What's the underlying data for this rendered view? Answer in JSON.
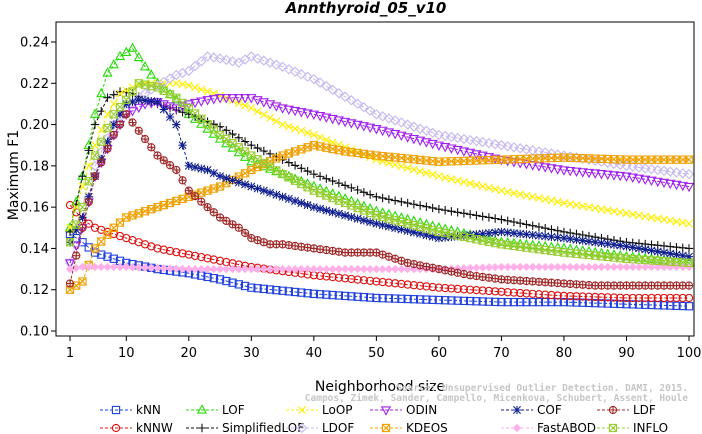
{
  "chart_data": {
    "type": "line",
    "title": "Annthyroid_05_v10",
    "xlabel": "Neighborhood size",
    "ylabel": "Maximum F1",
    "xlim": [
      1,
      100
    ],
    "ylim": [
      0.1,
      0.245
    ],
    "xticks": [
      1,
      10,
      20,
      30,
      40,
      50,
      60,
      70,
      80,
      90,
      100
    ],
    "yticks": [
      0.1,
      0.12,
      0.14,
      0.16,
      0.18,
      0.2,
      0.22,
      0.24
    ],
    "ytick_labels": [
      "0.10",
      "0.12",
      "0.14",
      "0.16",
      "0.18",
      "0.20",
      "0.22",
      "0.24"
    ],
    "grid": false,
    "legend_position": "bottom",
    "watermark": [
      "Source: Unsupervised Outlier Detection. DAMI, 2015.",
      "Campos, Zimek, Sander, Campello, Micenkova, Schubert, Assent, Houle"
    ],
    "series": [
      {
        "name": "kNN",
        "color": "#1f3fe0",
        "marker": "square-open",
        "x": [
          1,
          3,
          5,
          8,
          10,
          15,
          20,
          25,
          30,
          40,
          50,
          60,
          70,
          80,
          90,
          100
        ],
        "y": [
          0.147,
          0.143,
          0.138,
          0.135,
          0.133,
          0.13,
          0.128,
          0.125,
          0.121,
          0.118,
          0.116,
          0.115,
          0.114,
          0.114,
          0.113,
          0.112
        ]
      },
      {
        "name": "kNNW",
        "color": "#e01010",
        "marker": "circle-open",
        "x": [
          1,
          3,
          5,
          8,
          10,
          15,
          20,
          25,
          30,
          40,
          50,
          60,
          70,
          80,
          90,
          100
        ],
        "y": [
          0.161,
          0.154,
          0.15,
          0.147,
          0.145,
          0.14,
          0.137,
          0.134,
          0.131,
          0.127,
          0.124,
          0.121,
          0.119,
          0.117,
          0.116,
          0.116
        ]
      },
      {
        "name": "LOF",
        "color": "#22dd00",
        "marker": "triangle-open",
        "x": [
          1,
          3,
          5,
          7,
          9,
          11,
          13,
          15,
          18,
          20,
          25,
          30,
          35,
          40,
          50,
          60,
          70,
          80,
          90,
          100
        ],
        "y": [
          0.15,
          0.175,
          0.205,
          0.225,
          0.233,
          0.237,
          0.228,
          0.22,
          0.212,
          0.205,
          0.193,
          0.182,
          0.176,
          0.17,
          0.158,
          0.15,
          0.143,
          0.14,
          0.136,
          0.133
        ]
      },
      {
        "name": "SimplifiedLOF",
        "color": "#111111",
        "marker": "plus",
        "x": [
          1,
          3,
          5,
          7,
          9,
          11,
          13,
          15,
          18,
          20,
          25,
          30,
          35,
          40,
          50,
          60,
          70,
          80,
          90,
          100
        ],
        "y": [
          0.148,
          0.175,
          0.2,
          0.213,
          0.216,
          0.215,
          0.212,
          0.21,
          0.207,
          0.205,
          0.199,
          0.19,
          0.183,
          0.176,
          0.165,
          0.159,
          0.154,
          0.148,
          0.143,
          0.14
        ]
      },
      {
        "name": "LoOP",
        "color": "#ffee00",
        "marker": "cross",
        "x": [
          1,
          3,
          5,
          7,
          9,
          11,
          13,
          15,
          18,
          20,
          25,
          30,
          35,
          40,
          50,
          60,
          70,
          80,
          90,
          100
        ],
        "y": [
          0.15,
          0.17,
          0.19,
          0.205,
          0.215,
          0.218,
          0.22,
          0.22,
          0.22,
          0.219,
          0.214,
          0.208,
          0.2,
          0.195,
          0.183,
          0.175,
          0.168,
          0.162,
          0.157,
          0.152
        ]
      },
      {
        "name": "LDOF",
        "color": "#c7b7f2",
        "marker": "diamond-open",
        "x": [
          1,
          3,
          5,
          8,
          10,
          13,
          15,
          18,
          20,
          23,
          25,
          28,
          30,
          35,
          40,
          50,
          60,
          70,
          80,
          90,
          100
        ],
        "y": [
          0.133,
          0.15,
          0.18,
          0.2,
          0.208,
          0.215,
          0.219,
          0.224,
          0.226,
          0.233,
          0.232,
          0.23,
          0.233,
          0.228,
          0.222,
          0.205,
          0.195,
          0.19,
          0.185,
          0.18,
          0.176
        ]
      },
      {
        "name": "ODIN",
        "color": "#a020f0",
        "marker": "triangle-down-open",
        "x": [
          1,
          3,
          5,
          8,
          10,
          13,
          15,
          18,
          20,
          23,
          25,
          28,
          30,
          35,
          40,
          50,
          60,
          70,
          80,
          90,
          100
        ],
        "y": [
          0.133,
          0.15,
          0.175,
          0.195,
          0.205,
          0.21,
          0.211,
          0.208,
          0.21,
          0.212,
          0.213,
          0.213,
          0.213,
          0.208,
          0.205,
          0.198,
          0.19,
          0.183,
          0.178,
          0.175,
          0.17
        ]
      },
      {
        "name": "KDEOS",
        "color": "#f0a000",
        "marker": "square-x",
        "x": [
          1,
          3,
          5,
          8,
          10,
          15,
          20,
          25,
          30,
          35,
          40,
          45,
          50,
          60,
          70,
          80,
          90,
          100
        ],
        "y": [
          0.12,
          0.124,
          0.14,
          0.15,
          0.155,
          0.16,
          0.165,
          0.17,
          0.178,
          0.185,
          0.19,
          0.187,
          0.185,
          0.182,
          0.183,
          0.184,
          0.183,
          0.183
        ]
      },
      {
        "name": "COF",
        "color": "#102090",
        "marker": "star",
        "x": [
          1,
          3,
          5,
          8,
          10,
          12,
          15,
          18,
          20,
          23,
          25,
          30,
          35,
          40,
          50,
          60,
          70,
          80,
          90,
          100
        ],
        "y": [
          0.143,
          0.155,
          0.175,
          0.2,
          0.21,
          0.212,
          0.211,
          0.2,
          0.18,
          0.178,
          0.175,
          0.17,
          0.165,
          0.16,
          0.152,
          0.145,
          0.148,
          0.145,
          0.141,
          0.136
        ]
      },
      {
        "name": "FastABOD",
        "color": "#ffb0e8",
        "marker": "diamond",
        "x": [
          1,
          3,
          5,
          10,
          20,
          30,
          40,
          50,
          60,
          70,
          80,
          90,
          100
        ],
        "y": [
          0.13,
          0.131,
          0.131,
          0.131,
          0.13,
          0.13,
          0.13,
          0.13,
          0.13,
          0.131,
          0.131,
          0.131,
          0.131
        ]
      },
      {
        "name": "LDF",
        "color": "#a02828",
        "marker": "circle-plus",
        "x": [
          1,
          3,
          5,
          8,
          10,
          13,
          15,
          18,
          20,
          23,
          25,
          28,
          30,
          33,
          35,
          40,
          45,
          50,
          55,
          60,
          65,
          70,
          75,
          80,
          85,
          90,
          95,
          100
        ],
        "y": [
          0.123,
          0.15,
          0.175,
          0.195,
          0.205,
          0.193,
          0.185,
          0.178,
          0.168,
          0.16,
          0.155,
          0.15,
          0.145,
          0.142,
          0.142,
          0.14,
          0.138,
          0.138,
          0.133,
          0.13,
          0.127,
          0.125,
          0.124,
          0.123,
          0.122,
          0.122,
          0.122,
          0.122
        ]
      },
      {
        "name": "INFLO",
        "color": "#99cc33",
        "marker": "square-x",
        "x": [
          1,
          3,
          5,
          8,
          10,
          12,
          15,
          18,
          20,
          25,
          30,
          35,
          40,
          50,
          60,
          70,
          80,
          90,
          100
        ],
        "y": [
          0.143,
          0.16,
          0.185,
          0.205,
          0.212,
          0.22,
          0.218,
          0.213,
          0.208,
          0.195,
          0.185,
          0.176,
          0.168,
          0.156,
          0.148,
          0.142,
          0.138,
          0.135,
          0.133
        ]
      }
    ]
  }
}
